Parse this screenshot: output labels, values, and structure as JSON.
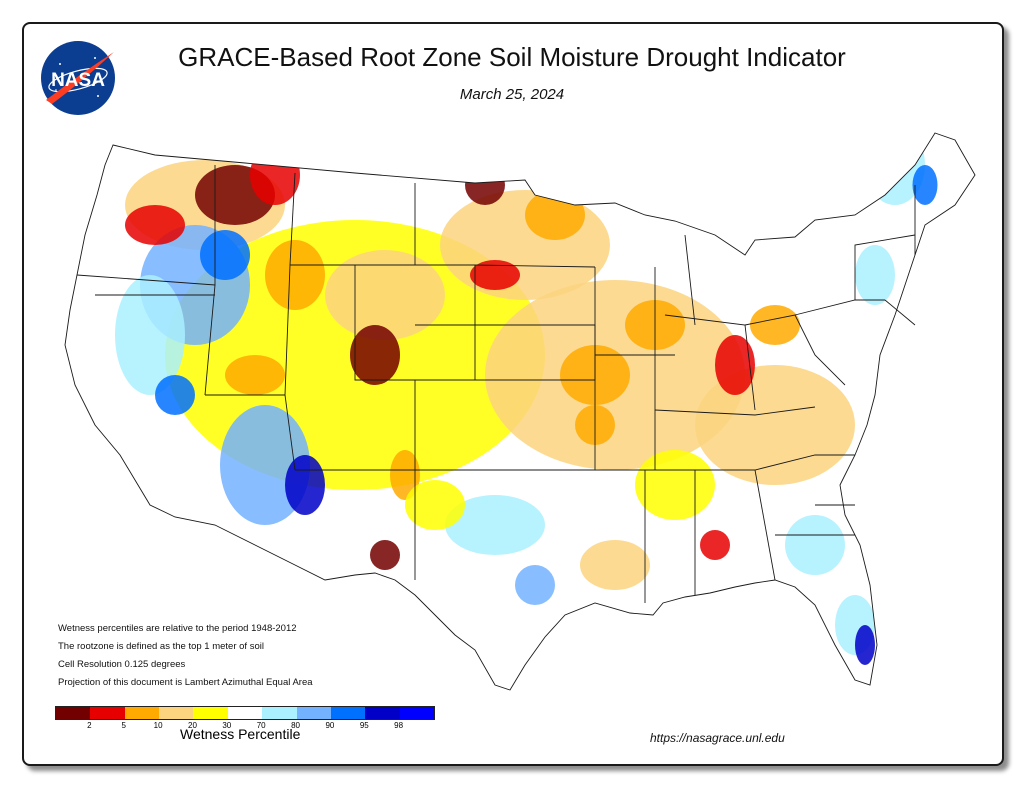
{
  "title": "GRACE-Based Root Zone Soil  Moisture Drought Indicator",
  "date": "March 25, 2024",
  "logo_text": "NASA",
  "notes": [
    "Wetness percentiles are relative to the period 1948-2012",
    "The rootzone is defined as the top 1 meter of soil",
    "Cell Resolution 0.125 degrees",
    "Projection of this document is Lambert Azimuthal Equal Area"
  ],
  "legend": {
    "title": "Wetness Percentile",
    "ticks": [
      "2",
      "5",
      "10",
      "20",
      "30",
      "70",
      "80",
      "90",
      "95",
      "98"
    ],
    "colors": [
      "#730000",
      "#e60000",
      "#ffaa00",
      "#fcd37f",
      "#ffff00",
      "#ffffff",
      "#aaf0ff",
      "#73b2ff",
      "#0070ff",
      "#0000c8",
      "#0000ff"
    ]
  },
  "url": "https://nasagrace.unl.edu",
  "colors": {
    "state_border": "#1a1a1a",
    "drought_exceptional": "#730000",
    "drought_extreme": "#e60000",
    "drought_severe": "#ffaa00",
    "drought_moderate": "#fcd37f",
    "abnormally_dry": "#ffff00",
    "normal": "#ffffff",
    "wet_light": "#aaf0ff",
    "wet_moderate": "#73b2ff",
    "wet_high": "#0070ff",
    "wet_extreme": "#0000c8"
  }
}
